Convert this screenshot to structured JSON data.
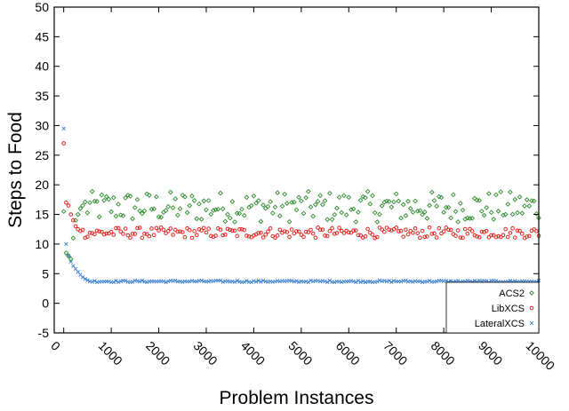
{
  "chart_data": {
    "type": "scatter",
    "title": "",
    "xlabel": "Problem Instances",
    "ylabel": "Steps to Food",
    "xlim": [
      -200,
      10000
    ],
    "ylim": [
      -5,
      50
    ],
    "xticks": [
      0,
      1000,
      2000,
      3000,
      4000,
      5000,
      6000,
      7000,
      8000,
      9000,
      10000
    ],
    "xtick_labels": [
      "0",
      "1000",
      "2000",
      "3000",
      "4000",
      "5000",
      "6000",
      "7000",
      "8000",
      "9000",
      "10000"
    ],
    "yticks": [
      -5,
      0,
      5,
      10,
      15,
      20,
      25,
      30,
      35,
      40,
      45,
      50
    ],
    "ytick_labels": [
      "-5",
      "0",
      "5",
      "10",
      "15",
      "20",
      "25",
      "30",
      "35",
      "40",
      "45",
      "50"
    ],
    "x_sample_step": 50,
    "grid": false,
    "legend_position": "bottom-right",
    "series": [
      {
        "name": "ACS2",
        "color": "#2e8b2e",
        "marker": "diamond",
        "initial": [
          [
            0,
            15.5
          ],
          [
            50,
            8.5
          ],
          [
            100,
            8.0
          ],
          [
            150,
            7.5
          ],
          [
            200,
            11.0
          ],
          [
            250,
            14.0
          ],
          [
            300,
            15.0
          ],
          [
            350,
            16.0
          ],
          [
            400,
            16.5
          ]
        ],
        "steady_mean": 16.3,
        "steady_spread": 2.6
      },
      {
        "name": "LibXCS",
        "color": "#e0231e",
        "marker": "circle",
        "initial": [
          [
            0,
            27.0
          ],
          [
            50,
            17.0
          ],
          [
            100,
            16.5
          ],
          [
            150,
            15.0
          ],
          [
            200,
            14.0
          ],
          [
            250,
            13.0
          ],
          [
            300,
            12.5
          ],
          [
            350,
            12.2
          ]
        ],
        "steady_mean": 11.9,
        "steady_spread": 0.9
      },
      {
        "name": "LateralXCS",
        "color": "#3a7fd1",
        "marker": "cross",
        "initial": [
          [
            0,
            29.5
          ],
          [
            50,
            10.0
          ],
          [
            100,
            8.0
          ],
          [
            150,
            7.0
          ],
          [
            200,
            6.3
          ],
          [
            250,
            5.8
          ],
          [
            300,
            5.3
          ],
          [
            350,
            4.8
          ],
          [
            400,
            4.4
          ],
          [
            450,
            4.1
          ],
          [
            500,
            3.9
          ]
        ],
        "steady_mean": 3.7,
        "steady_spread": 0.15
      }
    ]
  }
}
